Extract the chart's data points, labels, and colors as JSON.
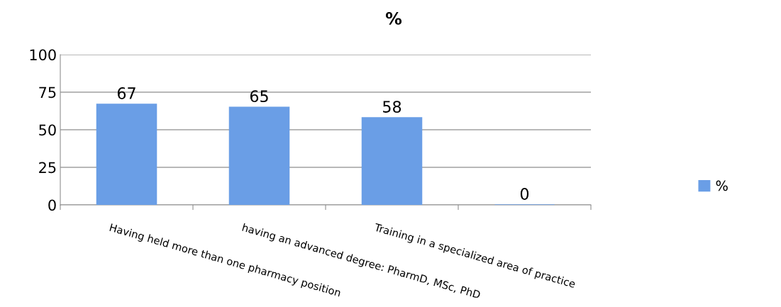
{
  "chart_data": {
    "type": "bar",
    "title": "%",
    "categories": [
      "Having held more than one pharmacy position",
      "having an advanced degree: PharmD, MSc, PhD",
      "Training in a specialized area of practice",
      null
    ],
    "series": [
      {
        "name": "%",
        "color": "#6a9ee6",
        "values": [
          67,
          65,
          58,
          0
        ]
      }
    ],
    "ylim": [
      0,
      100
    ],
    "yticks": [
      0,
      25,
      50,
      75,
      100
    ],
    "grid": "y",
    "legend": "right",
    "data_labels": true
  }
}
